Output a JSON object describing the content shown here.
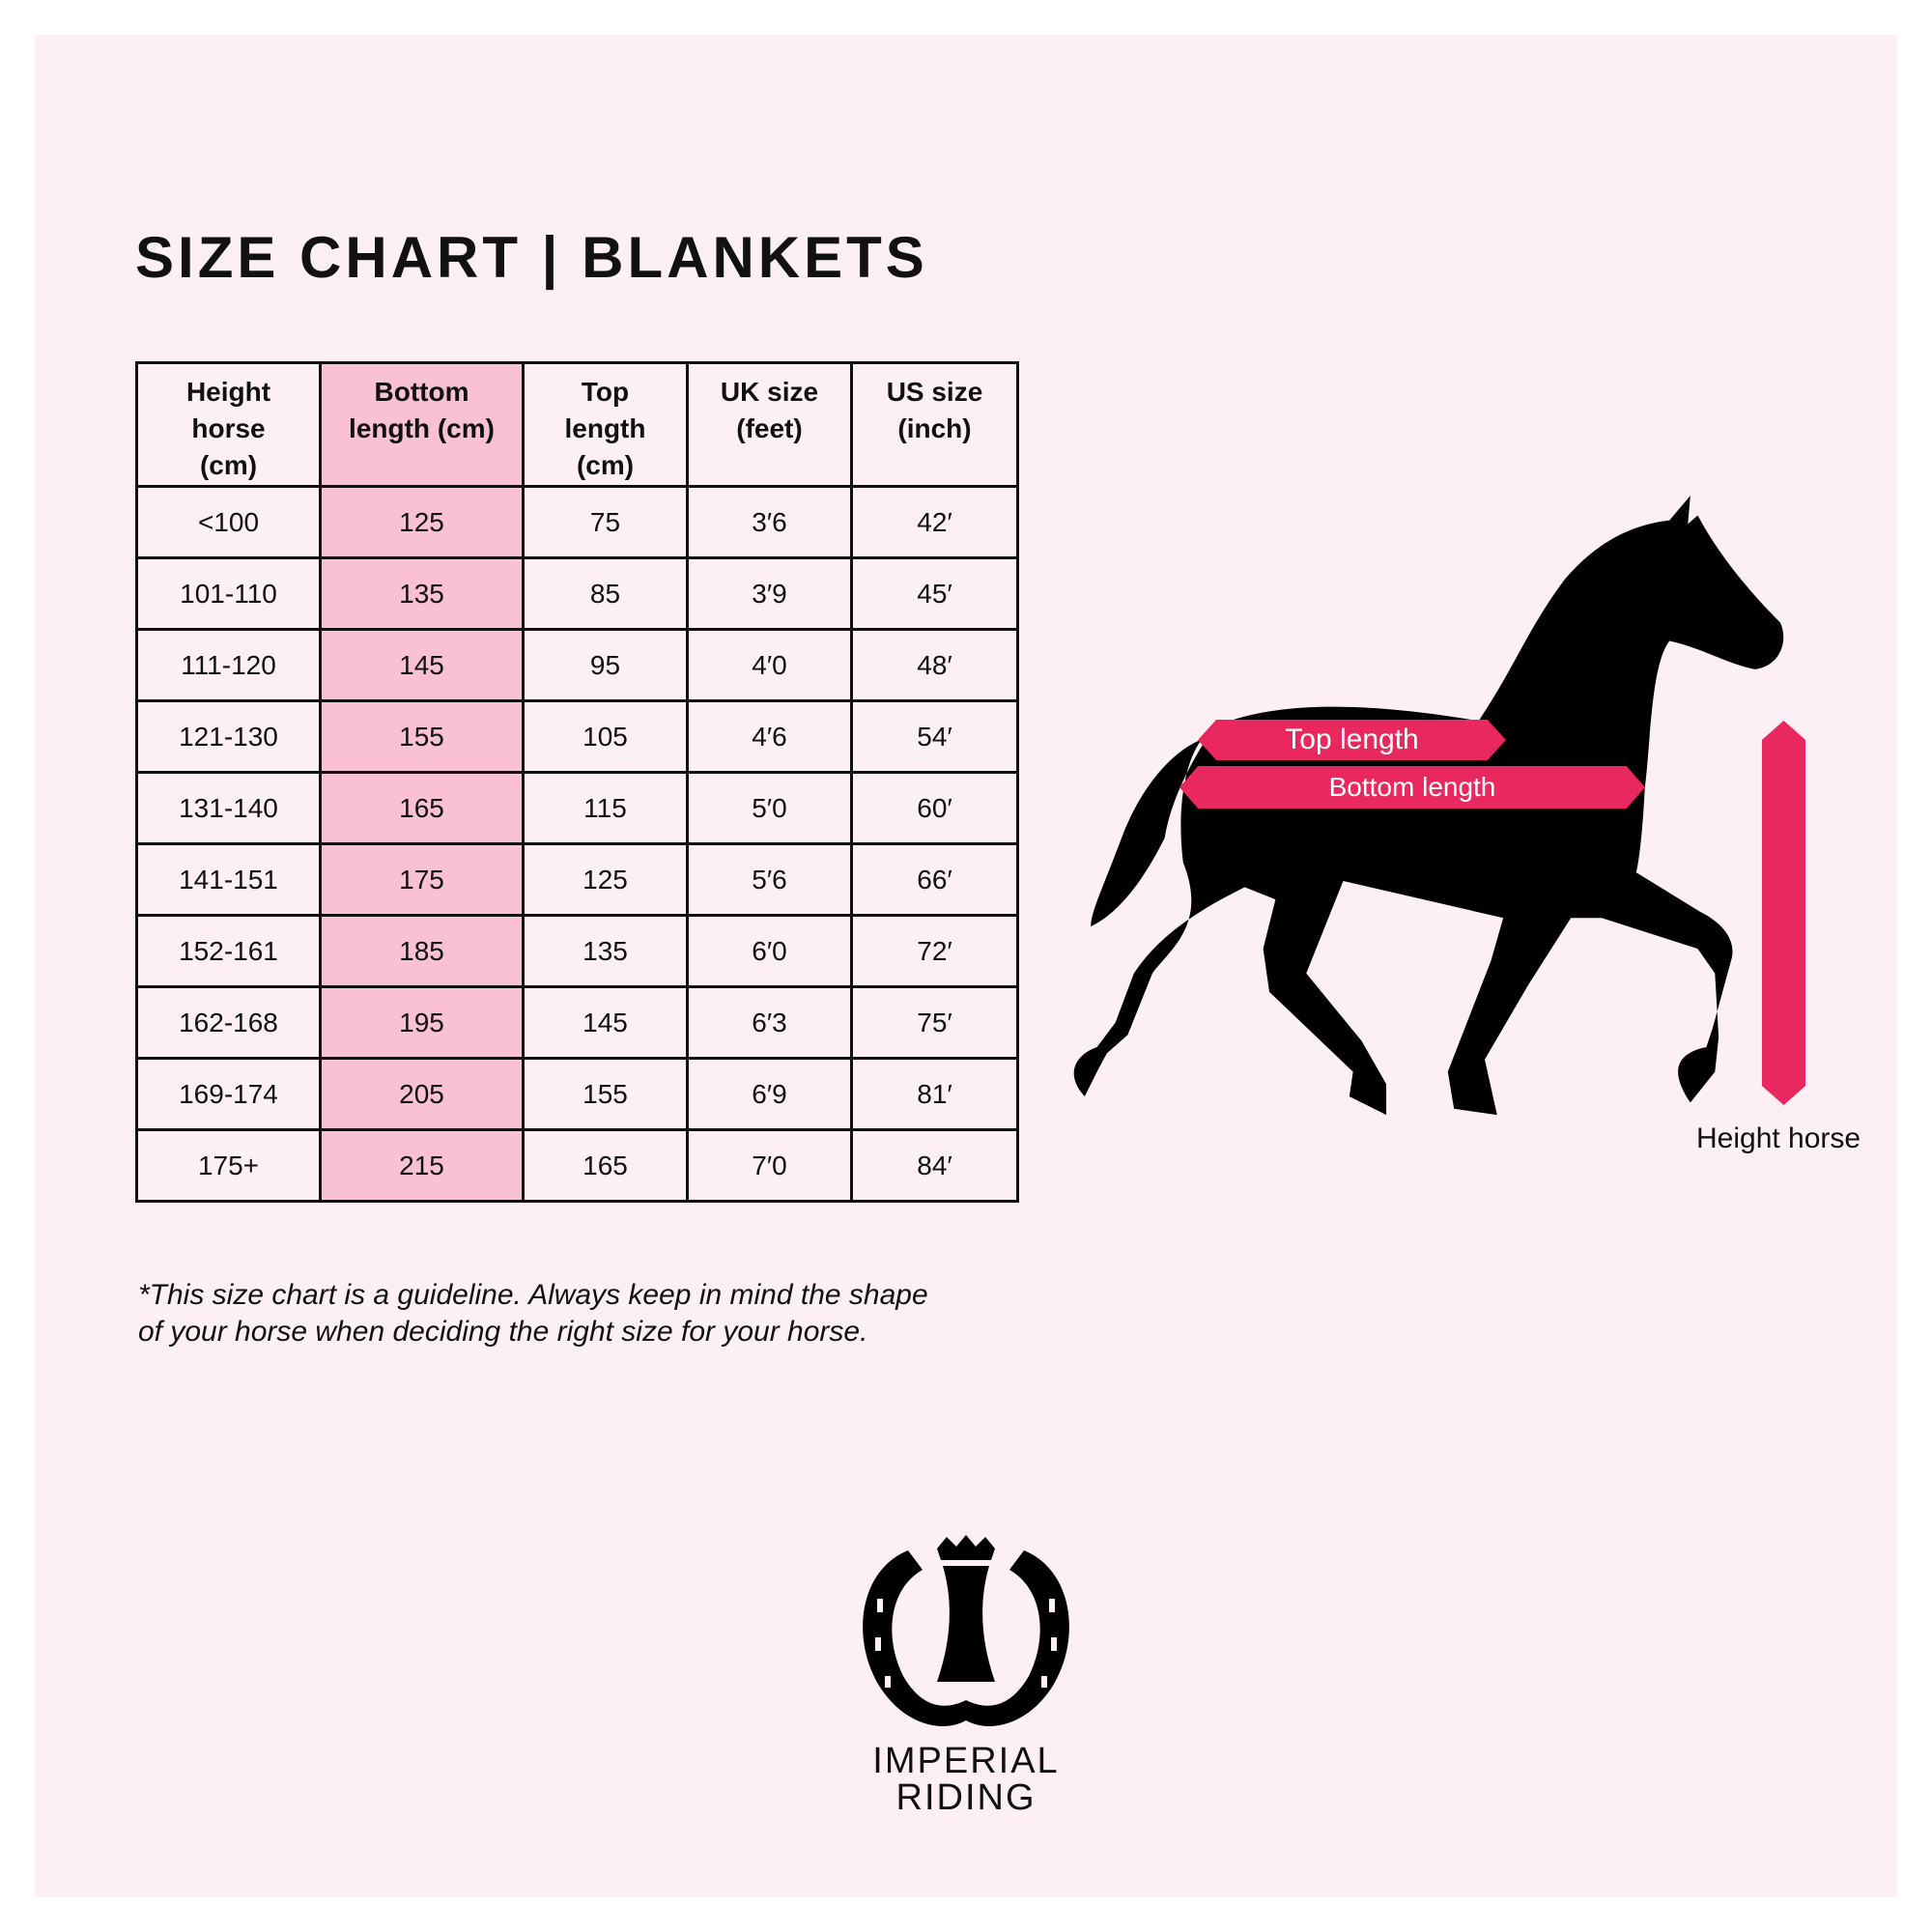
{
  "title": "SIZE CHART | BLANKETS",
  "table": {
    "headers": [
      "Height horse (cm)",
      "Bottom length (cm)",
      "Top length (cm)",
      "UK size (feet)",
      "US size (inch)"
    ],
    "header_lines": [
      [
        "Height",
        "horse",
        "(cm)"
      ],
      [
        "Bottom",
        "length (cm)"
      ],
      [
        "Top",
        "length",
        "(cm)"
      ],
      [
        "UK size",
        "(feet)"
      ],
      [
        "US size",
        "(inch)"
      ]
    ],
    "rows": [
      [
        "<100",
        "125",
        "75",
        "3′6",
        "42′"
      ],
      [
        "101-110",
        "135",
        "85",
        "3′9",
        "45′"
      ],
      [
        "111-120",
        "145",
        "95",
        "4′0",
        "48′"
      ],
      [
        "121-130",
        "155",
        "105",
        "4′6",
        "54′"
      ],
      [
        "131-140",
        "165",
        "115",
        "5′0",
        "60′"
      ],
      [
        "141-151",
        "175",
        "125",
        "5′6",
        "66′"
      ],
      [
        "152-161",
        "185",
        "135",
        "6′0",
        "72′"
      ],
      [
        "162-168",
        "195",
        "145",
        "6′3",
        "75′"
      ],
      [
        "169-174",
        "205",
        "155",
        "6′9",
        "81′"
      ],
      [
        "175+",
        "215",
        "165",
        "7′0",
        "84′"
      ]
    ],
    "highlight_column_color": "#f9c1d2"
  },
  "note_lines": [
    "*This size chart is a guideline. Always keep in mind the shape",
    "of your horse when deciding the right size for your horse."
  ],
  "diagram": {
    "top_length": "Top length",
    "bottom_length": "Bottom length",
    "height_horse": "Height horse",
    "accent_color": "#e9285f",
    "icon": "horse-silhouette-icon"
  },
  "brand": {
    "line1": "IMPERIAL",
    "line2": "RIDING",
    "icon": "horseshoe-crown-logo"
  },
  "colors": {
    "background": "#fdf0f4",
    "text": "#111111"
  }
}
